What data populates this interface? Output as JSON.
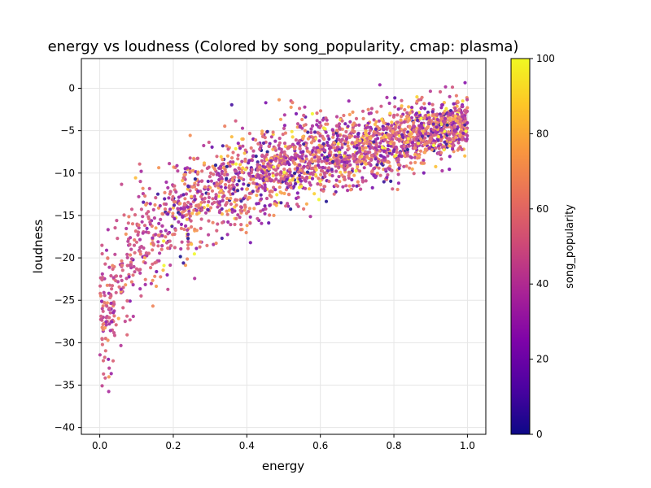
{
  "chart_data": {
    "type": "scatter",
    "title": "energy vs loudness (Colored by song_popularity, cmap: plasma)",
    "xlabel": "energy",
    "ylabel": "loudness",
    "xlim": [
      -0.05,
      1.05
    ],
    "ylim": [
      -40.8,
      3.5
    ],
    "xticks": [
      0.0,
      0.2,
      0.4,
      0.6,
      0.8,
      1.0
    ],
    "xtick_labels": [
      "0.0",
      "0.2",
      "0.4",
      "0.6",
      "0.8",
      "1.0"
    ],
    "yticks": [
      0,
      -5,
      -10,
      -15,
      -20,
      -25,
      -30,
      -35,
      -40
    ],
    "ytick_labels": [
      "0",
      "−5",
      "−10",
      "−15",
      "−20",
      "−25",
      "−30",
      "−35",
      "−40"
    ],
    "grid": true,
    "colormap": "plasma",
    "colorbar": {
      "label": "song_popularity",
      "range": [
        0,
        100
      ],
      "ticks": [
        0,
        20,
        40,
        60,
        80,
        100
      ],
      "tick_labels": [
        "0",
        "20",
        "40",
        "60",
        "80",
        "100"
      ]
    },
    "trend_summary": [
      {
        "energy": 0.0,
        "loudness_mean": -29.0,
        "loudness_spread": 4.0
      },
      {
        "energy": 0.05,
        "loudness_mean": -22.5,
        "loudness_spread": 3.5
      },
      {
        "energy": 0.1,
        "loudness_mean": -18.5,
        "loudness_spread": 3.5
      },
      {
        "energy": 0.2,
        "loudness_mean": -14.5,
        "loudness_spread": 3.0
      },
      {
        "energy": 0.3,
        "loudness_mean": -12.0,
        "loudness_spread": 2.8
      },
      {
        "energy": 0.4,
        "loudness_mean": -10.5,
        "loudness_spread": 2.6
      },
      {
        "energy": 0.5,
        "loudness_mean": -9.0,
        "loudness_spread": 2.5
      },
      {
        "energy": 0.6,
        "loudness_mean": -8.0,
        "loudness_spread": 2.3
      },
      {
        "energy": 0.7,
        "loudness_mean": -7.0,
        "loudness_spread": 2.1
      },
      {
        "energy": 0.8,
        "loudness_mean": -6.0,
        "loudness_spread": 2.0
      },
      {
        "energy": 0.9,
        "loudness_mean": -5.2,
        "loudness_spread": 1.8
      },
      {
        "energy": 1.0,
        "loudness_mean": -4.0,
        "loudness_spread": 1.6
      }
    ],
    "point_count": 2600
  }
}
